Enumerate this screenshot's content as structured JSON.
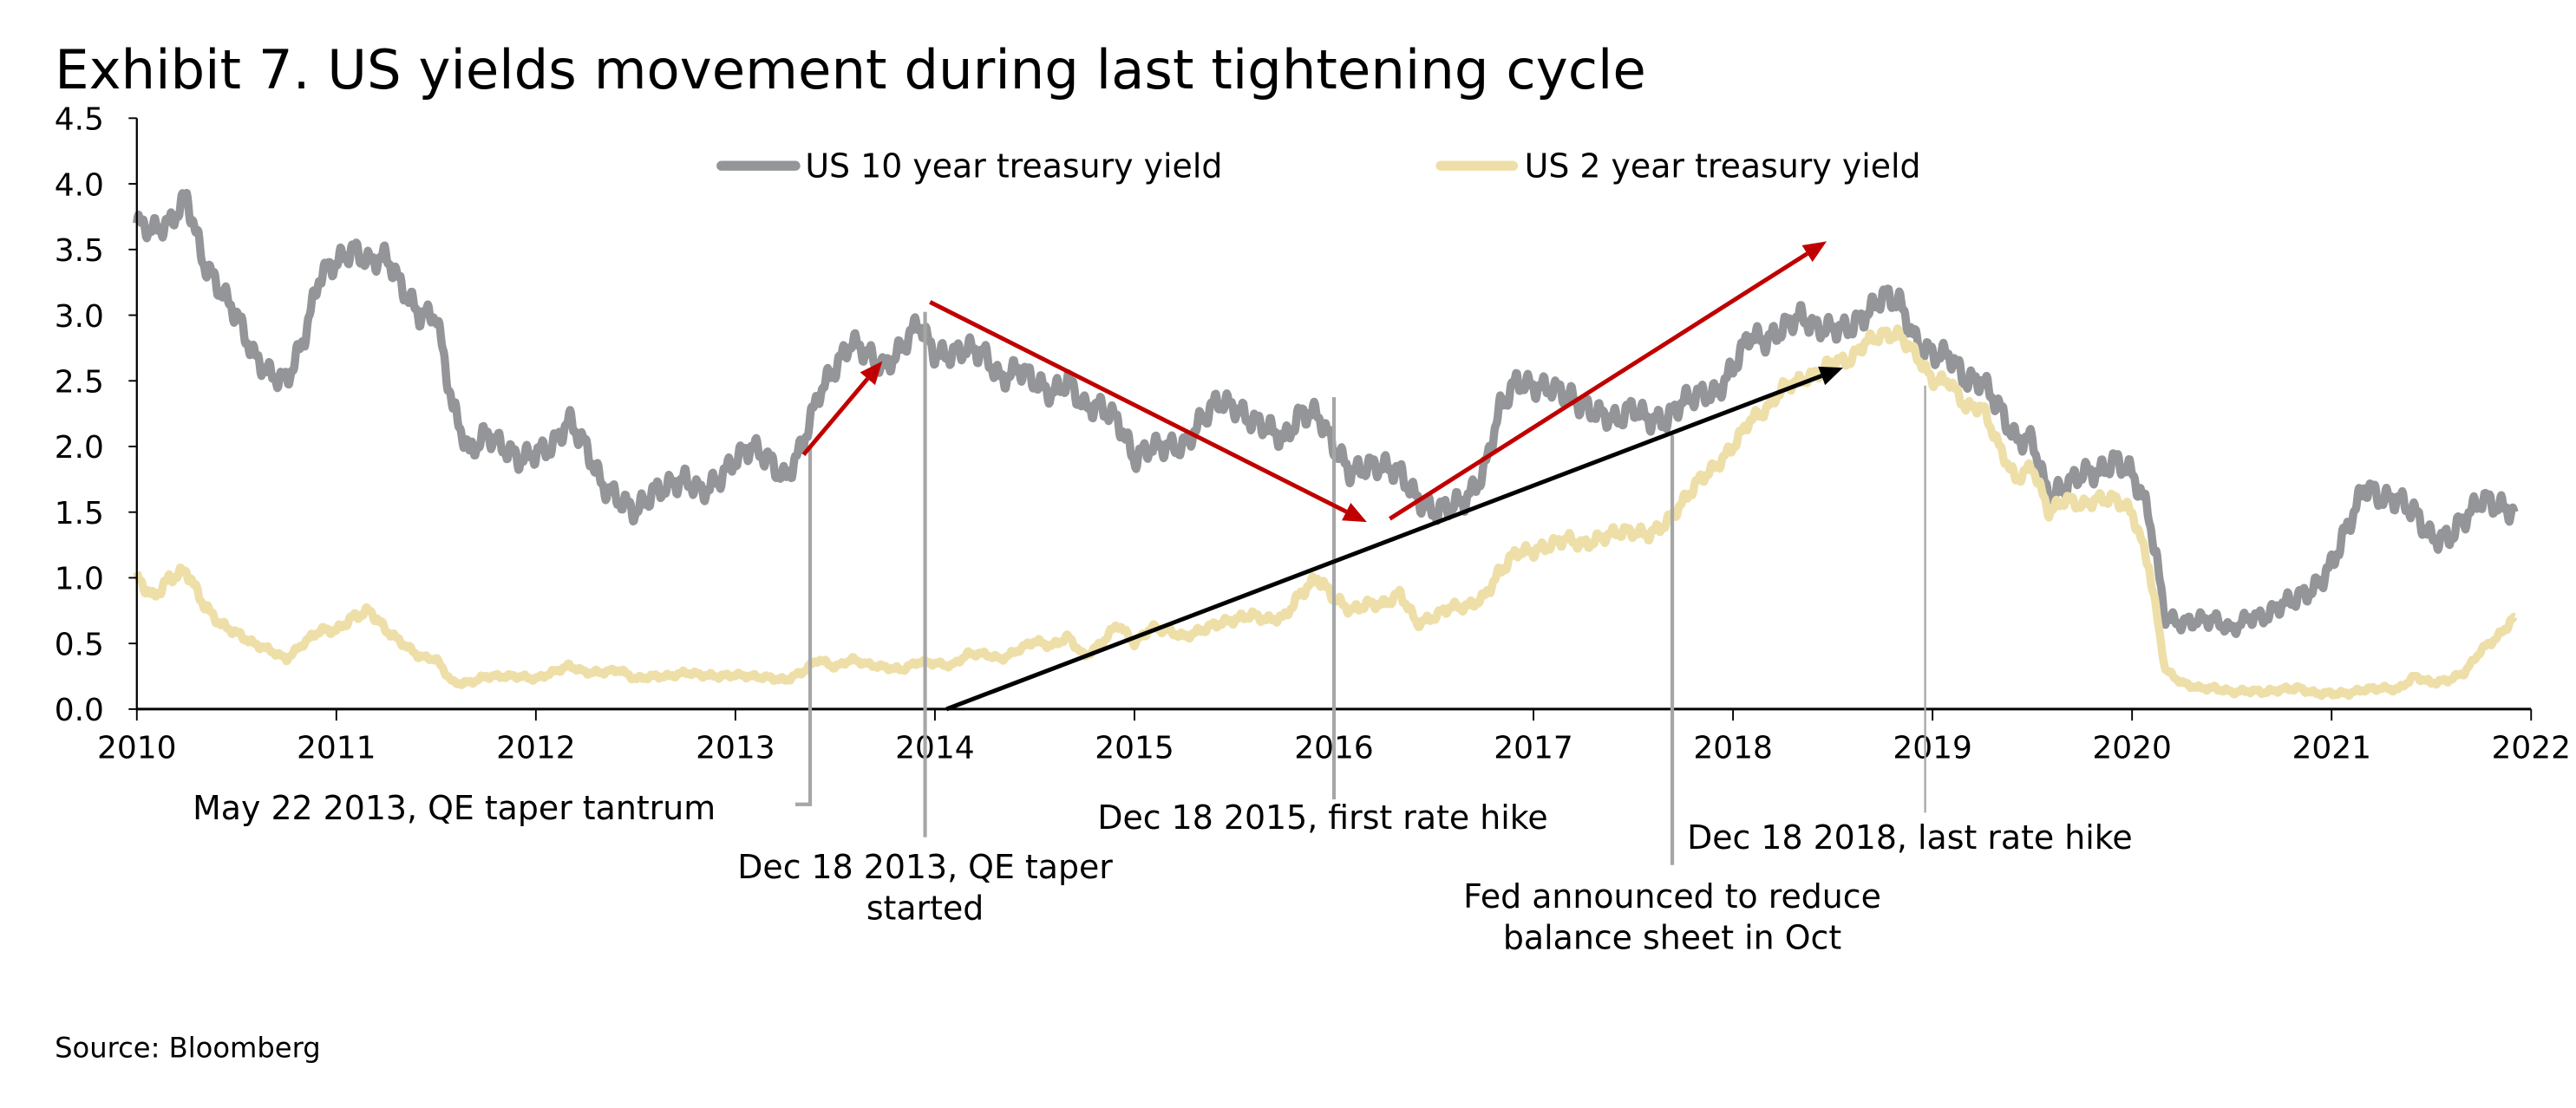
{
  "chart_data": {
    "type": "line",
    "title": "Exhibit 7. US yields movement during last tightening cycle",
    "source": "Source: Bloomberg",
    "xlim": [
      2010,
      2022
    ],
    "ylim": [
      0,
      4.5
    ],
    "x_ticks": [
      "2010",
      "2011",
      "2012",
      "2013",
      "2014",
      "2015",
      "2016",
      "2017",
      "2018",
      "2019",
      "2020",
      "2021",
      "2022"
    ],
    "y_ticks": [
      "0.0",
      "0.5",
      "1.0",
      "1.5",
      "2.0",
      "2.5",
      "3.0",
      "3.5",
      "4.0",
      "4.5"
    ],
    "grid": false,
    "legend_placement": "top-center",
    "x_sampling": "monthly, Jan 2010 - Dec 2021",
    "series": [
      {
        "name": "US 10 year treasury yield",
        "color": "#939598",
        "values": [
          3.7,
          3.65,
          3.7,
          3.9,
          3.4,
          3.2,
          3.0,
          2.7,
          2.55,
          2.5,
          2.8,
          3.3,
          3.4,
          3.5,
          3.4,
          3.45,
          3.2,
          3.0,
          3.0,
          2.3,
          1.95,
          2.1,
          2.0,
          1.9,
          1.95,
          2.0,
          2.2,
          2.0,
          1.7,
          1.6,
          1.5,
          1.65,
          1.7,
          1.75,
          1.65,
          1.75,
          1.9,
          2.0,
          1.9,
          1.75,
          2.0,
          2.4,
          2.6,
          2.8,
          2.7,
          2.6,
          2.75,
          2.95,
          2.7,
          2.7,
          2.75,
          2.7,
          2.5,
          2.6,
          2.5,
          2.4,
          2.5,
          2.3,
          2.3,
          2.2,
          1.9,
          2.0,
          2.0,
          2.0,
          2.2,
          2.35,
          2.3,
          2.2,
          2.15,
          2.05,
          2.25,
          2.25,
          2.0,
          1.8,
          1.85,
          1.85,
          1.8,
          1.6,
          1.5,
          1.55,
          1.6,
          1.8,
          2.3,
          2.5,
          2.45,
          2.45,
          2.4,
          2.3,
          2.25,
          2.2,
          2.3,
          2.2,
          2.2,
          2.35,
          2.4,
          2.4,
          2.6,
          2.85,
          2.8,
          2.9,
          3.0,
          2.9,
          2.9,
          2.9,
          3.0,
          3.15,
          3.1,
          2.8,
          2.7,
          2.7,
          2.5,
          2.5,
          2.3,
          2.05,
          2.05,
          1.6,
          1.7,
          1.8,
          1.8,
          1.9,
          1.8,
          1.5,
          0.7,
          0.65,
          0.68,
          0.68,
          0.6,
          0.7,
          0.7,
          0.8,
          0.85,
          0.92,
          1.1,
          1.4,
          1.7,
          1.6,
          1.6,
          1.5,
          1.3,
          1.3,
          1.45,
          1.6,
          1.55,
          1.5
        ]
      },
      {
        "name": "US 2 year treasury yield",
        "color": "#EEDFA8",
        "values": [
          1.0,
          0.85,
          1.0,
          1.05,
          0.8,
          0.65,
          0.58,
          0.5,
          0.45,
          0.38,
          0.5,
          0.6,
          0.6,
          0.7,
          0.75,
          0.6,
          0.5,
          0.4,
          0.38,
          0.2,
          0.2,
          0.25,
          0.25,
          0.25,
          0.23,
          0.28,
          0.33,
          0.28,
          0.28,
          0.3,
          0.23,
          0.25,
          0.25,
          0.28,
          0.26,
          0.25,
          0.26,
          0.25,
          0.24,
          0.22,
          0.28,
          0.38,
          0.32,
          0.38,
          0.34,
          0.32,
          0.3,
          0.36,
          0.35,
          0.33,
          0.42,
          0.42,
          0.38,
          0.45,
          0.52,
          0.48,
          0.55,
          0.4,
          0.5,
          0.65,
          0.5,
          0.62,
          0.6,
          0.55,
          0.6,
          0.65,
          0.68,
          0.72,
          0.68,
          0.7,
          0.88,
          1.0,
          0.85,
          0.75,
          0.8,
          0.8,
          0.88,
          0.65,
          0.7,
          0.78,
          0.78,
          0.85,
          1.05,
          1.2,
          1.2,
          1.25,
          1.3,
          1.25,
          1.3,
          1.35,
          1.35,
          1.33,
          1.42,
          1.58,
          1.75,
          1.85,
          2.0,
          2.2,
          2.28,
          2.45,
          2.5,
          2.55,
          2.65,
          2.65,
          2.8,
          2.85,
          2.85,
          2.7,
          2.5,
          2.5,
          2.3,
          2.3,
          2.0,
          1.75,
          1.85,
          1.5,
          1.6,
          1.55,
          1.6,
          1.6,
          1.5,
          1.1,
          0.3,
          0.2,
          0.16,
          0.16,
          0.13,
          0.14,
          0.13,
          0.15,
          0.16,
          0.12,
          0.12,
          0.12,
          0.15,
          0.16,
          0.15,
          0.25,
          0.2,
          0.22,
          0.28,
          0.45,
          0.55,
          0.7
        ]
      }
    ],
    "annotations": [
      {
        "label": "May 22 2013, QE taper tantrum"
      },
      {
        "label_line1": "Dec 18 2013, QE taper",
        "label_line2": "started"
      },
      {
        "label": "Dec 18 2015, first rate hike"
      },
      {
        "label_line1": "Fed announced to reduce",
        "label_line2": "balance sheet in Oct"
      },
      {
        "label": "Dec 18 2018, last rate hike"
      }
    ],
    "arrow_colors": {
      "red": "#C00000",
      "black": "#000000"
    }
  }
}
